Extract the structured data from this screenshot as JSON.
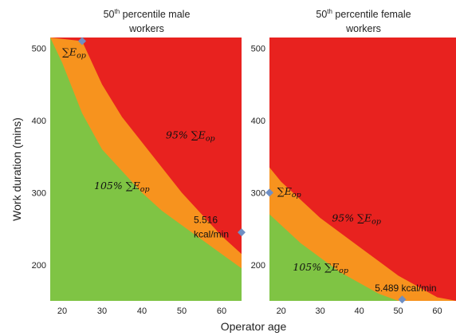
{
  "chart_data": [
    {
      "type": "area",
      "title_lines": [
        "50th percentile male",
        "workers"
      ],
      "title_superscript": "th",
      "xlabel": "Operator age",
      "ylabel": "Work duration (mins)",
      "xlim": [
        17,
        65
      ],
      "ylim": [
        150,
        515
      ],
      "xticks": [
        20,
        30,
        40,
        50,
        60
      ],
      "yticks": [
        200,
        300,
        400,
        500
      ],
      "colors": {
        "below_105": "#7fc444",
        "band": "#f7931e",
        "above_95": "#e8221f",
        "marker": "#6f8fc4"
      },
      "series": [
        {
          "name": "95% ∑E_op",
          "x": [
            17,
            25,
            30,
            35,
            40,
            45,
            50,
            55,
            60,
            65
          ],
          "y": [
            515,
            510,
            450,
            405,
            370,
            335,
            300,
            270,
            240,
            215
          ]
        },
        {
          "name": "105% ∑E_op",
          "x": [
            17,
            20,
            25,
            30,
            35,
            40,
            45,
            50,
            55,
            60,
            65
          ],
          "y": [
            515,
            480,
            410,
            360,
            330,
            300,
            275,
            255,
            235,
            215,
            195
          ]
        }
      ],
      "markers": [
        {
          "x": 25,
          "y": 510
        },
        {
          "x": 65,
          "y": 245
        }
      ],
      "annotations": [
        {
          "label": "∑E",
          "sub": "op",
          "x": 20,
          "y": 490
        },
        {
          "label": "95% ∑E",
          "sub": "op",
          "x": 46,
          "y": 375
        },
        {
          "label": "105% ∑E",
          "sub": "op",
          "x": 28,
          "y": 305
        },
        {
          "label": "5.516",
          "x": 53,
          "y": 258
        },
        {
          "label": "kcal/min",
          "x": 53,
          "y": 238
        }
      ]
    },
    {
      "type": "area",
      "title_lines": [
        "50th percentile female",
        "workers"
      ],
      "title_superscript": "th",
      "xlabel": "Operator age",
      "ylabel": "",
      "xlim": [
        17,
        65
      ],
      "ylim": [
        150,
        515
      ],
      "xticks": [
        20,
        30,
        40,
        50,
        60
      ],
      "yticks": [
        200,
        300,
        400,
        500
      ],
      "colors": {
        "below_105": "#7fc444",
        "band": "#f7931e",
        "above_95": "#e8221f",
        "marker": "#6f8fc4"
      },
      "series": [
        {
          "name": "95% ∑E_op",
          "x": [
            17,
            20,
            25,
            30,
            35,
            40,
            45,
            50,
            55,
            60,
            65
          ],
          "y": [
            335,
            315,
            290,
            265,
            245,
            225,
            205,
            185,
            170,
            155,
            150
          ]
        },
        {
          "name": "105% ∑E_op",
          "x": [
            17,
            20,
            25,
            30,
            35,
            40,
            45,
            50,
            55,
            60,
            65
          ],
          "y": [
            270,
            255,
            230,
            210,
            190,
            175,
            160,
            150,
            150,
            150,
            150
          ]
        }
      ],
      "markers": [
        {
          "x": 17,
          "y": 300
        },
        {
          "x": 51,
          "y": 152
        }
      ],
      "annotations": [
        {
          "label": "∑E",
          "sub": "op",
          "x": 19,
          "y": 297
        },
        {
          "label": "95% ∑E",
          "sub": "op",
          "x": 33,
          "y": 260
        },
        {
          "label": "105% ∑E",
          "sub": "op",
          "x": 23,
          "y": 192
        },
        {
          "label": "5.489 kcal/min",
          "x": 44,
          "y": 163
        }
      ]
    }
  ]
}
